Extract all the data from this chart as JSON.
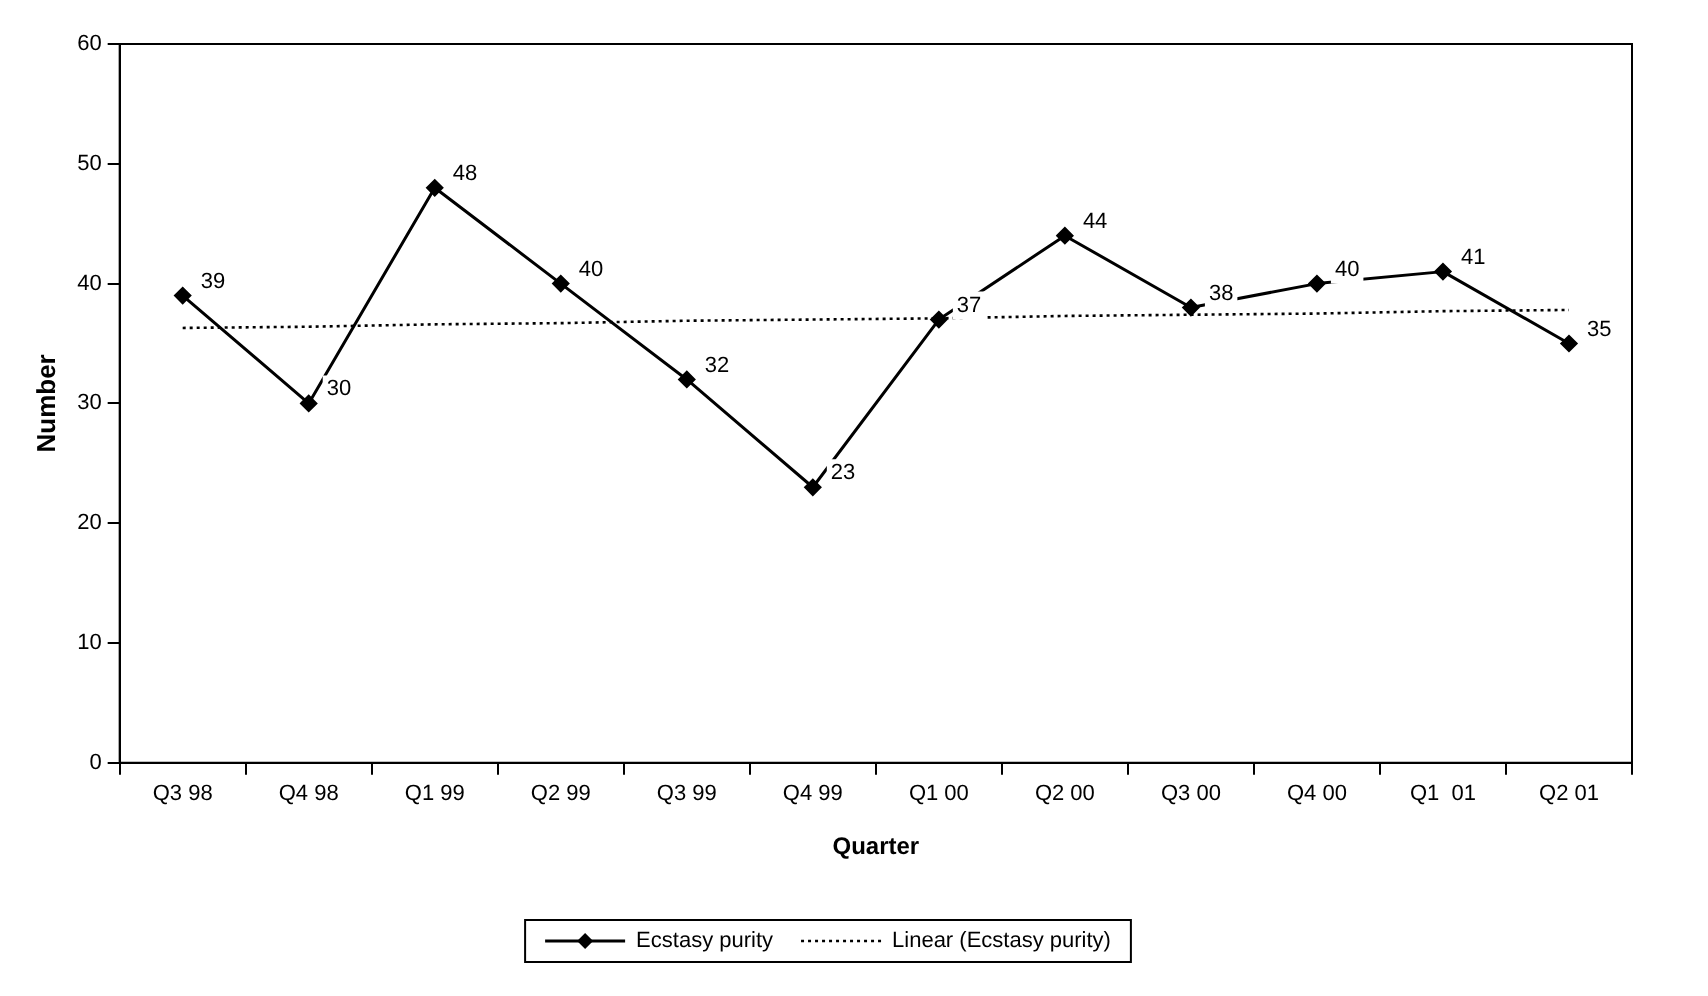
{
  "chart_data": {
    "type": "line",
    "xlabel": "Quarter",
    "ylabel": "Number",
    "categories": [
      "Q3 98",
      "Q4 98",
      "Q1 99",
      "Q2 99",
      "Q3 99",
      "Q4 99",
      "Q1 00",
      "Q2 00",
      "Q3 00",
      "Q4 00",
      "Q1  01",
      "Q2 01"
    ],
    "series": [
      {
        "name": "Ecstasy purity",
        "color": "#000000",
        "marker": "diamond",
        "line_style": "solid",
        "values": [
          39,
          30,
          48,
          40,
          32,
          23,
          37,
          44,
          38,
          40,
          41,
          35
        ],
        "value_labels": [
          "39",
          "30",
          "48",
          "40",
          "32",
          "23",
          "37",
          "44",
          "38",
          "40",
          "41",
          "35"
        ]
      },
      {
        "name": "Linear (Ecstasy purity)",
        "color": "#000000",
        "marker": "none",
        "line_style": "dotted",
        "values": [
          36.3,
          36.4,
          36.6,
          36.7,
          36.9,
          37.0,
          37.1,
          37.3,
          37.4,
          37.5,
          37.7,
          37.8
        ]
      }
    ],
    "ylim": [
      0,
      60
    ],
    "yticks": [
      0,
      10,
      20,
      30,
      40,
      50,
      60
    ],
    "grid": false,
    "legend": "bottom"
  }
}
